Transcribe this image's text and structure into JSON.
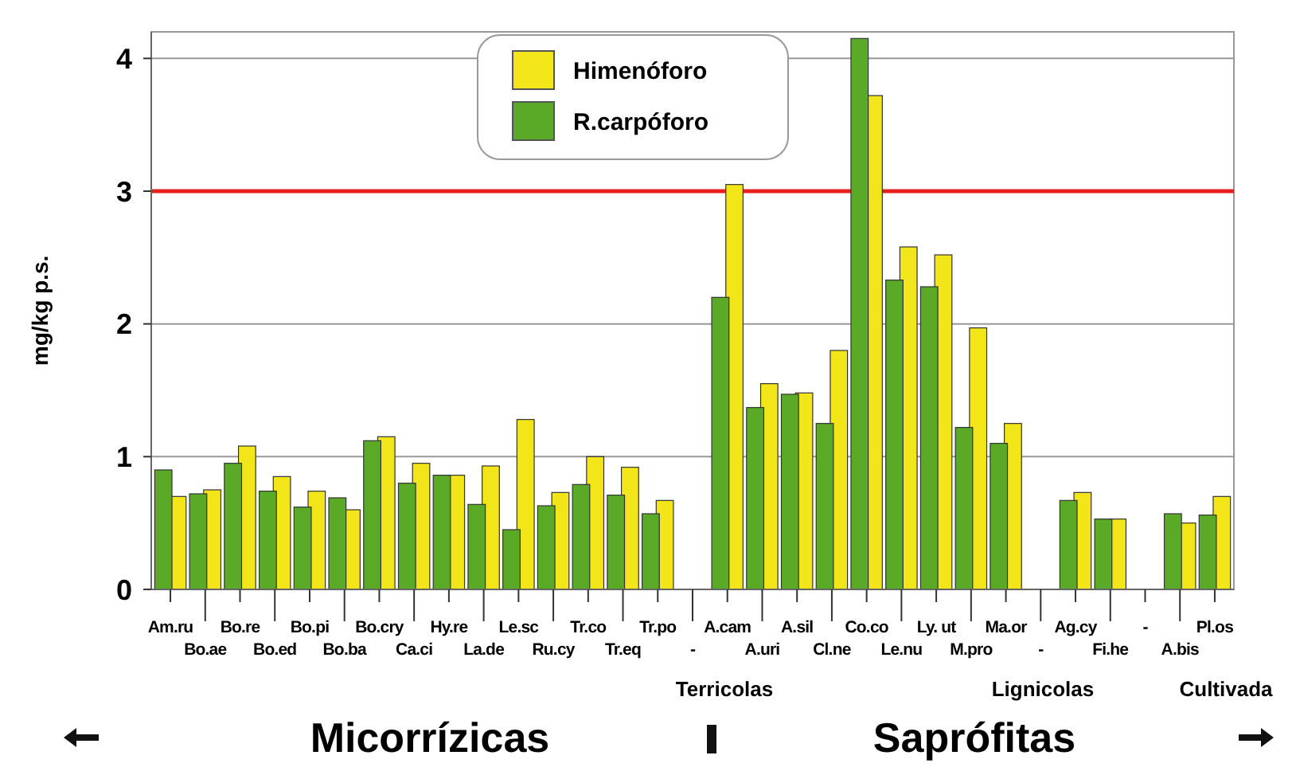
{
  "chart_data": {
    "type": "bar",
    "ylabel": "mg/kg p.s.",
    "categories": [
      "Am.ru",
      "Bo.ae",
      "Bo.re",
      "Bo.ed",
      "Bo.pi",
      "Bo.ba",
      "Bo.cry",
      "Ca.ci",
      "Hy.re",
      "La.de",
      "Le.sc",
      "Ru.cy",
      "Tr.co",
      "Tr.eq",
      "Tr.po",
      "-",
      "A.cam",
      "A.uri",
      "A.sil",
      "Cl.ne",
      "Co.co",
      "Le.nu",
      "Ly. ut",
      "M.pro",
      "Ma.or",
      "-",
      "Ag.cy",
      "Fi.he",
      "-",
      "A.bis",
      "Pl.os"
    ],
    "series": [
      {
        "name": "Himenóforo",
        "color": "#f2e51a",
        "values": [
          0.7,
          0.75,
          1.08,
          0.85,
          0.74,
          0.6,
          1.15,
          0.95,
          0.86,
          0.93,
          1.28,
          0.73,
          1.0,
          0.92,
          0.67,
          null,
          3.05,
          1.55,
          1.48,
          1.8,
          3.72,
          2.58,
          2.52,
          1.97,
          1.25,
          null,
          0.73,
          0.53,
          null,
          0.5,
          0.7
        ]
      },
      {
        "name": "R.carpóforo",
        "color": "#5aaa28",
        "values": [
          0.9,
          0.72,
          0.95,
          0.74,
          0.62,
          0.69,
          1.12,
          0.8,
          0.86,
          0.64,
          0.45,
          0.63,
          0.79,
          0.71,
          0.57,
          null,
          2.2,
          1.37,
          1.47,
          1.25,
          4.15,
          2.33,
          2.28,
          1.22,
          1.1,
          null,
          0.67,
          0.53,
          null,
          0.57,
          0.56
        ]
      }
    ],
    "ylim": [
      0,
      4.2
    ],
    "yticks": [
      0,
      1,
      2,
      3,
      4
    ],
    "grid": "y",
    "legend": "top",
    "ref_lines": [
      {
        "axis": "y",
        "value": 3,
        "color": "#e8201c"
      }
    ],
    "annotations": [
      "Terricolas",
      "Lignicolas",
      "Cultivada",
      "Micorrízicas",
      "Saprófitas"
    ]
  }
}
